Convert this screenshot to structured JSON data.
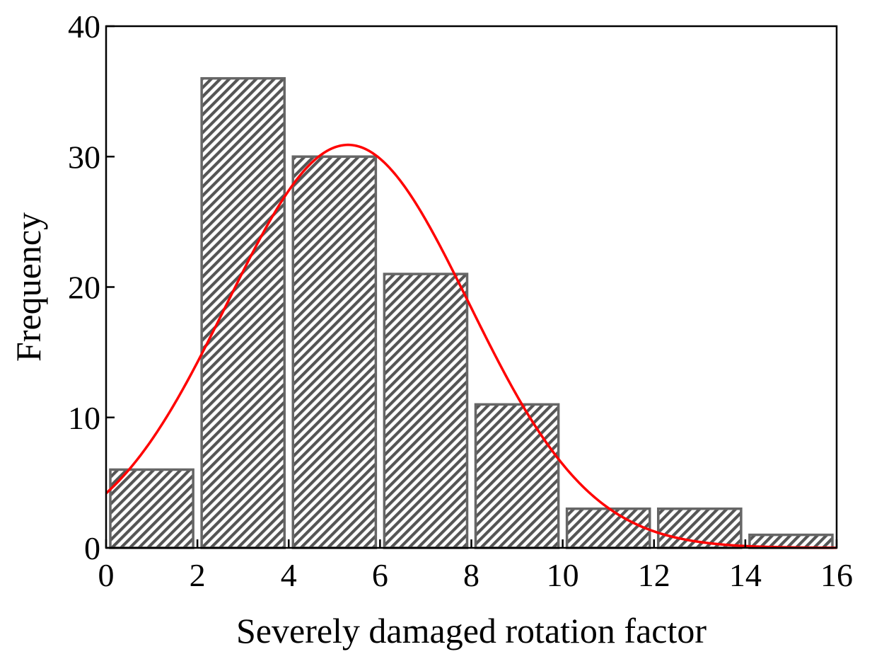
{
  "chart_data": {
    "type": "bar",
    "title": "",
    "xlabel": "Severely damaged  rotation factor",
    "ylabel": "Frequency",
    "xlim": [
      0,
      16
    ],
    "ylim": [
      0,
      40
    ],
    "xticks": [
      0,
      2,
      4,
      6,
      8,
      10,
      12,
      14,
      16
    ],
    "yticks": [
      0,
      10,
      20,
      30,
      40
    ],
    "bins": [
      {
        "start": 0,
        "end": 2,
        "value": 6
      },
      {
        "start": 2,
        "end": 4,
        "value": 36
      },
      {
        "start": 4,
        "end": 6,
        "value": 30
      },
      {
        "start": 6,
        "end": 8,
        "value": 21
      },
      {
        "start": 8,
        "end": 10,
        "value": 11
      },
      {
        "start": 10,
        "end": 12,
        "value": 3
      },
      {
        "start": 12,
        "end": 14,
        "value": 3
      },
      {
        "start": 14,
        "end": 16,
        "value": 1
      }
    ],
    "fit_curve": {
      "type": "normal",
      "mean": 5.3,
      "sd": 2.65,
      "peak": 30.9,
      "x_range": [
        0,
        16
      ],
      "color": "#ff0000"
    },
    "bar_fill": "hatched",
    "bar_edge_color": "#666666",
    "grid": false,
    "legend": "none"
  }
}
